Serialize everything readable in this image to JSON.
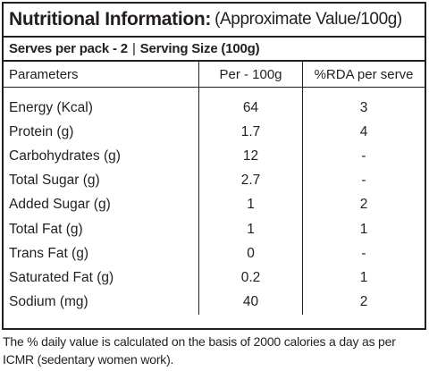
{
  "title": {
    "bold": "Nutritional Information:",
    "normal": "(Approximate Value/100g)"
  },
  "serves": {
    "pack": "Serves per pack - 2",
    "separator": "|",
    "size": "Serving Size (100g)"
  },
  "table": {
    "headers": {
      "parameters": "Parameters",
      "per_100g": "Per - 100g",
      "rda": "%RDA per serve"
    },
    "rows": [
      {
        "parameter": "Energy (Kcal)",
        "per_100g": "64",
        "rda": "3"
      },
      {
        "parameter": "Protein (g)",
        "per_100g": "1.7",
        "rda": "4"
      },
      {
        "parameter": "Carbohydrates (g)",
        "per_100g": "12",
        "rda": "-"
      },
      {
        "parameter": "Total Sugar (g)",
        "per_100g": "2.7",
        "rda": "-"
      },
      {
        "parameter": "Added Sugar (g)",
        "per_100g": "1",
        "rda": "2"
      },
      {
        "parameter": "Total Fat (g)",
        "per_100g": "1",
        "rda": "1"
      },
      {
        "parameter": "Trans Fat (g)",
        "per_100g": "0",
        "rda": "-"
      },
      {
        "parameter": "Saturated Fat (g)",
        "per_100g": "0.2",
        "rda": "1"
      },
      {
        "parameter": "Sodium (mg)",
        "per_100g": "40",
        "rda": "2"
      }
    ]
  },
  "footnote": "The % daily value is calculated on the basis of 2000 calories a day as per ICMR (sedentary women work)."
}
